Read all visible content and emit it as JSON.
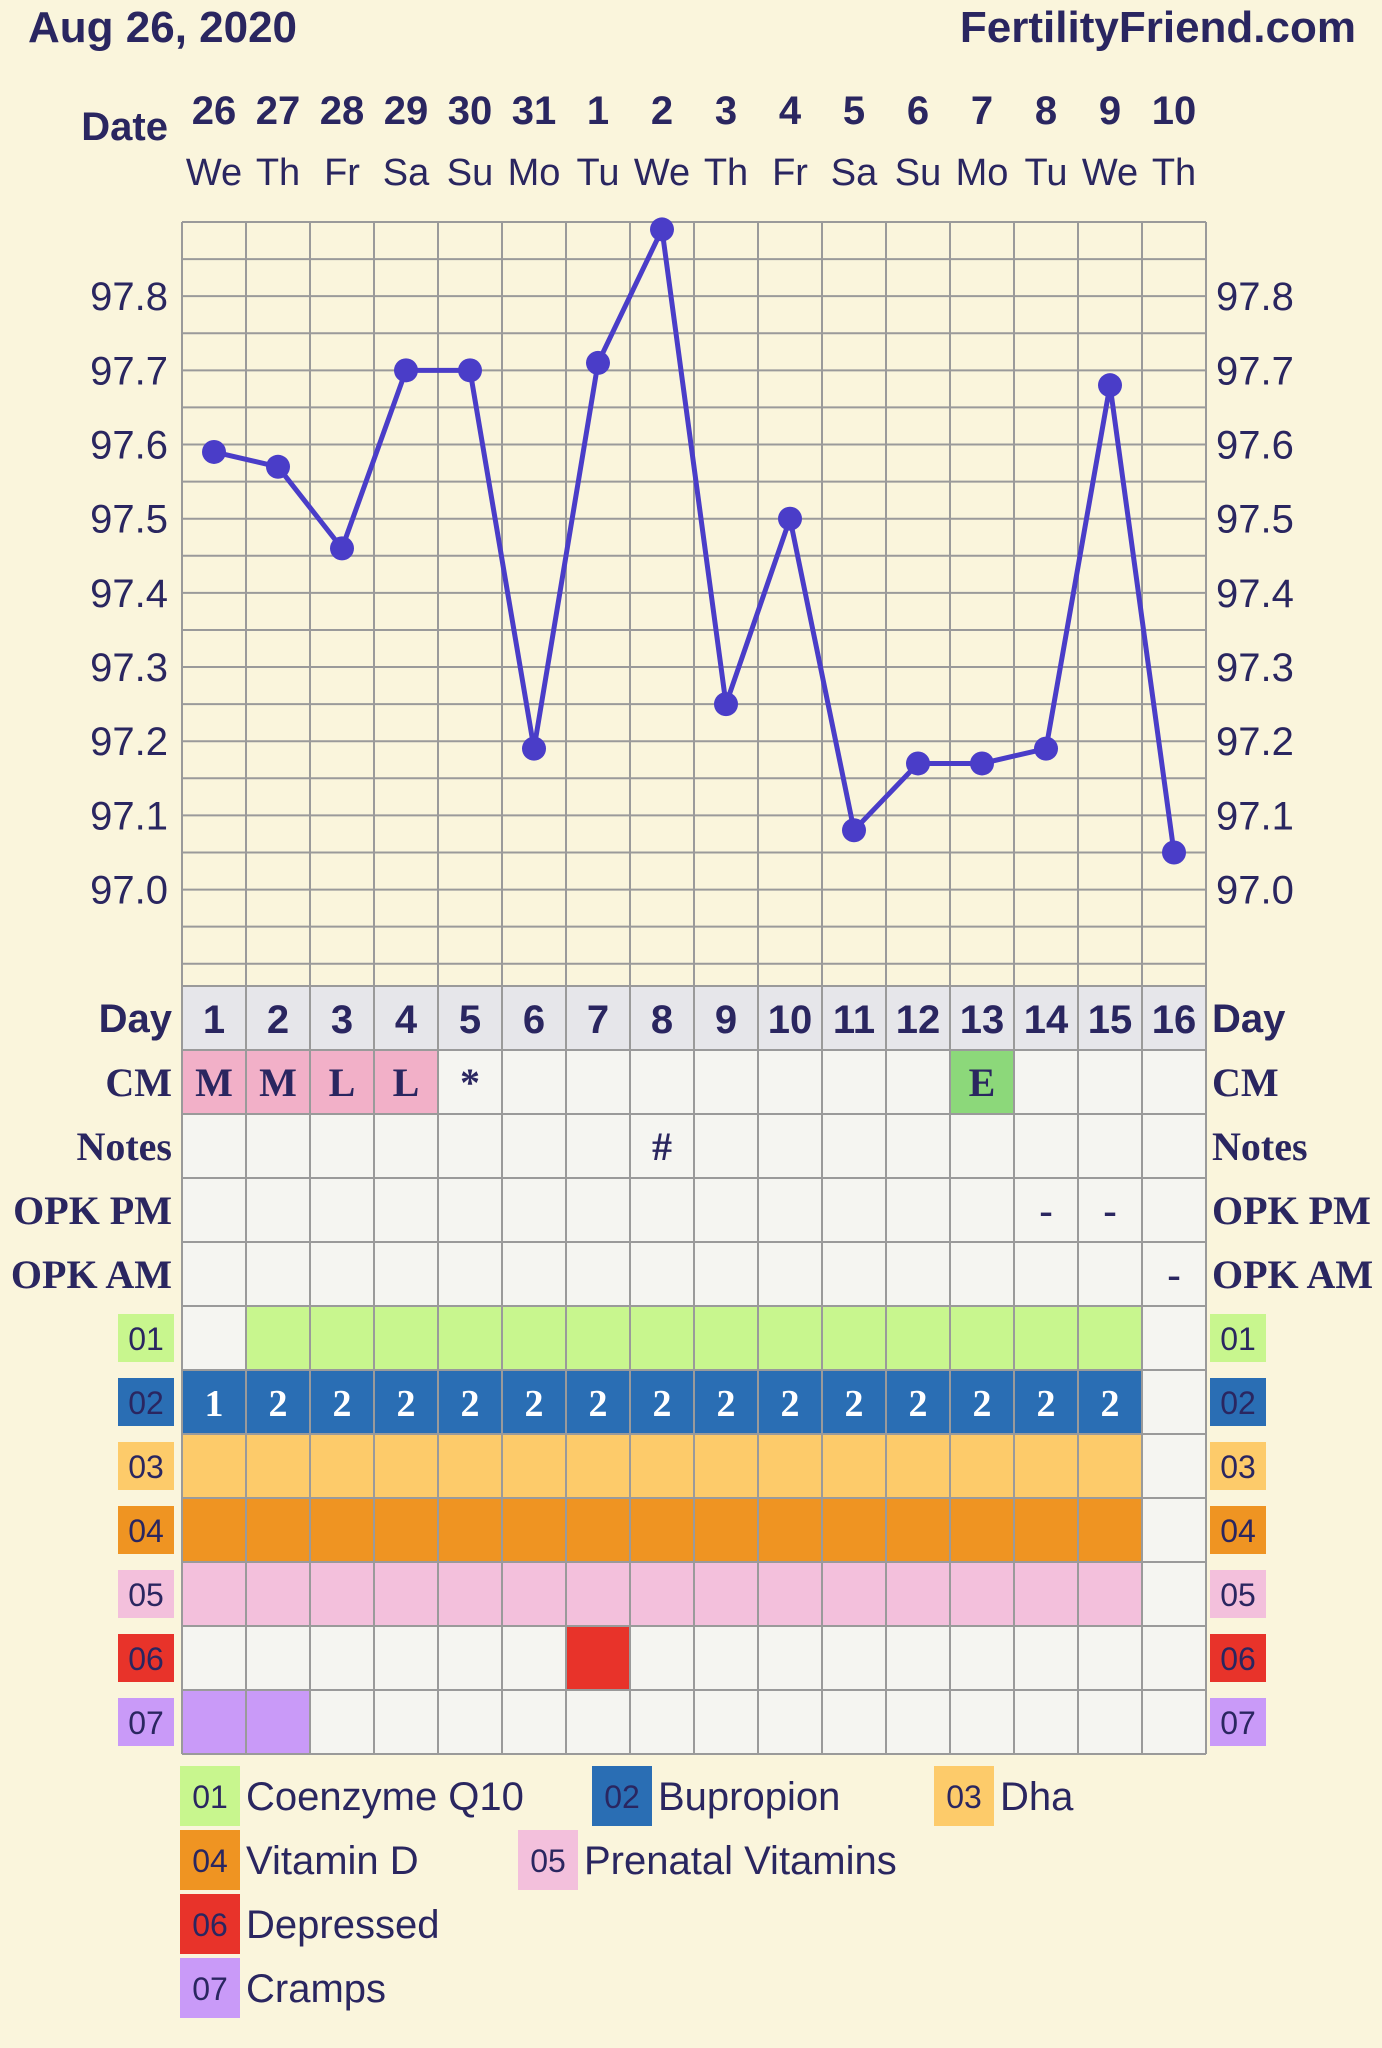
{
  "header": {
    "date": "Aug 26, 2020",
    "site": "FertilityFriend.com"
  },
  "labels": {
    "date": "Date",
    "day": "Day",
    "cm": "CM",
    "notes": "Notes",
    "opk_pm": "OPK PM",
    "opk_am": "OPK AM"
  },
  "colors": {
    "background": "#faf5dc",
    "line": "#4a3dc8",
    "grid": "#9a9a9a",
    "text": "#2a2660",
    "cell": "#f5f5f1",
    "day_header": "#e6e6ea",
    "cm_M": "#f2b0c8",
    "cm_L": "#f2b0c8",
    "cm_E": "#8cd87a"
  },
  "chart_data": {
    "type": "line",
    "x_dates": [
      "26",
      "27",
      "28",
      "29",
      "30",
      "31",
      "1",
      "2",
      "3",
      "4",
      "5",
      "6",
      "7",
      "8",
      "9",
      "10"
    ],
    "x_weekdays": [
      "We",
      "Th",
      "Fr",
      "Sa",
      "Su",
      "Mo",
      "Tu",
      "We",
      "Th",
      "Fr",
      "Sa",
      "Su",
      "Mo",
      "Tu",
      "We",
      "Th"
    ],
    "cycle_days": [
      "1",
      "2",
      "3",
      "4",
      "5",
      "6",
      "7",
      "8",
      "9",
      "10",
      "11",
      "12",
      "13",
      "14",
      "15",
      "16"
    ],
    "series": [
      {
        "values": [
          97.59,
          97.57,
          97.46,
          97.7,
          97.7,
          97.19,
          97.71,
          97.89,
          97.25,
          97.5,
          97.08,
          97.17,
          97.17,
          97.19,
          97.68,
          97.05
        ]
      }
    ],
    "ylim": [
      96.87,
      97.9
    ],
    "y_ticks": [
      "97.8",
      "97.7",
      "97.6",
      "97.5",
      "97.4",
      "97.3",
      "97.2",
      "97.1",
      "97.0"
    ],
    "y_tick_values": [
      97.8,
      97.7,
      97.6,
      97.5,
      97.4,
      97.3,
      97.2,
      97.1,
      97.0
    ],
    "grid": true,
    "cm": [
      "M",
      "M",
      "L",
      "L",
      "*",
      "",
      "",
      "",
      "",
      "",
      "",
      "",
      "E",
      "",
      "",
      ""
    ],
    "notes": [
      "",
      "",
      "",
      "",
      "",
      "",
      "",
      "#",
      "",
      "",
      "",
      "",
      "",
      "",
      "",
      ""
    ],
    "opk_pm": [
      "",
      "",
      "",
      "",
      "",
      "",
      "",
      "",
      "",
      "",
      "",
      "",
      "",
      "-",
      "-",
      ""
    ],
    "opk_am": [
      "",
      "",
      "",
      "",
      "",
      "",
      "",
      "",
      "",
      "",
      "",
      "",
      "",
      "",
      "",
      "-"
    ],
    "trackers": [
      {
        "id": "01",
        "name": "Coenzyme Q10",
        "color": "#c8f68e",
        "days": [
          0,
          1,
          1,
          1,
          1,
          1,
          1,
          1,
          1,
          1,
          1,
          1,
          1,
          1,
          1,
          0
        ],
        "text": []
      },
      {
        "id": "02",
        "name": "Bupropion",
        "color": "#2a6eb4",
        "days": [
          1,
          1,
          1,
          1,
          1,
          1,
          1,
          1,
          1,
          1,
          1,
          1,
          1,
          1,
          1,
          0
        ],
        "text": [
          "1",
          "2",
          "2",
          "2",
          "2",
          "2",
          "2",
          "2",
          "2",
          "2",
          "2",
          "2",
          "2",
          "2",
          "2",
          ""
        ]
      },
      {
        "id": "03",
        "name": "Dha",
        "color": "#fdcb6a",
        "days": [
          1,
          1,
          1,
          1,
          1,
          1,
          1,
          1,
          1,
          1,
          1,
          1,
          1,
          1,
          1,
          0
        ],
        "text": []
      },
      {
        "id": "04",
        "name": "Vitamin D",
        "color": "#ef9422",
        "days": [
          1,
          1,
          1,
          1,
          1,
          1,
          1,
          1,
          1,
          1,
          1,
          1,
          1,
          1,
          1,
          0
        ],
        "text": []
      },
      {
        "id": "05",
        "name": "Prenatal Vitamins",
        "color": "#f3c0dc",
        "days": [
          1,
          1,
          1,
          1,
          1,
          1,
          1,
          1,
          1,
          1,
          1,
          1,
          1,
          1,
          1,
          0
        ],
        "text": []
      },
      {
        "id": "06",
        "name": "Depressed",
        "color": "#e8332a",
        "days": [
          0,
          0,
          0,
          0,
          0,
          0,
          1,
          0,
          0,
          0,
          0,
          0,
          0,
          0,
          0,
          0
        ],
        "text": []
      },
      {
        "id": "07",
        "name": "Cramps",
        "color": "#c99af8",
        "days": [
          1,
          1,
          0,
          0,
          0,
          0,
          0,
          0,
          0,
          0,
          0,
          0,
          0,
          0,
          0,
          0
        ],
        "text": []
      }
    ]
  }
}
